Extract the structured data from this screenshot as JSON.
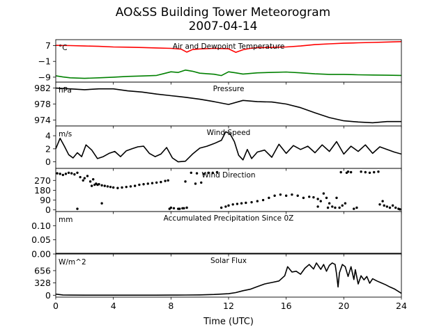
{
  "figure": {
    "title": "AO&SS Building Tower Meteorogram",
    "subtitle": "2007-04-14",
    "xlabel": "Time (UTC)"
  },
  "chart_data": {
    "type": "line",
    "title": "AO&SS Building Tower Meteorogram",
    "subtitle": "2007-04-14",
    "xlabel": "Time (UTC)",
    "xlim": [
      0,
      24
    ],
    "xticks": [
      0,
      4,
      8,
      12,
      16,
      20,
      24
    ],
    "xtick_labels": [
      "0",
      "4",
      "8",
      "12",
      "16",
      "20",
      "24"
    ],
    "panels": [
      {
        "name": "temperature",
        "title": "Air and Dewpoint Temperature",
        "unit": "°C",
        "ylim": [
          -11.5,
          10
        ],
        "yticks": [
          7,
          -1,
          -9
        ],
        "ytick_labels": [
          "7",
          "−1",
          "−9"
        ],
        "series": [
          {
            "color": "#ff0000",
            "style": "line",
            "x": [
              0,
              1,
              2,
              3,
              4,
              5,
              6,
              7,
              8,
              8.7,
              9.1,
              9.5,
              10,
              11,
              12,
              12.5,
              13,
              13.5,
              14,
              15,
              16,
              17,
              18,
              19,
              20,
              21,
              22,
              23,
              24
            ],
            "y": [
              7.1,
              7.0,
              6.8,
              6.6,
              6.3,
              6.2,
              6.0,
              5.8,
              5.6,
              5.2,
              3.7,
              5.0,
              5.3,
              5.6,
              5.4,
              3.6,
              4.9,
              5.6,
              5.9,
              6.1,
              6.3,
              6.8,
              7.5,
              7.9,
              8.2,
              8.4,
              8.6,
              8.8,
              9.0
            ]
          },
          {
            "color": "#008000",
            "style": "line",
            "x": [
              0,
              0.5,
              1,
              2,
              3,
              4,
              5,
              6,
              7,
              7.5,
              8,
              8.5,
              9,
              9.5,
              10,
              11,
              11.5,
              12,
              12.5,
              13,
              14,
              15,
              16,
              17,
              18,
              19,
              20,
              21,
              22,
              23,
              24
            ],
            "y": [
              -8.3,
              -8.9,
              -9.3,
              -9.6,
              -9.3,
              -9.0,
              -8.6,
              -8.4,
              -8.1,
              -7.2,
              -6.3,
              -6.6,
              -5.4,
              -6.0,
              -7.0,
              -7.5,
              -8.2,
              -6.3,
              -6.8,
              -7.4,
              -6.8,
              -6.6,
              -6.4,
              -6.8,
              -7.3,
              -7.6,
              -7.6,
              -7.8,
              -7.9,
              -8.0,
              -8.1
            ]
          }
        ]
      },
      {
        "name": "pressure",
        "title": "Pressure",
        "unit": "hPa",
        "ylim": [
          972.5,
          983.5
        ],
        "yticks": [
          982,
          978,
          974
        ],
        "ytick_labels": [
          "982",
          "978",
          "974"
        ],
        "series": [
          {
            "color": "#000000",
            "style": "line",
            "x": [
              0,
              1,
              2,
              3,
              4,
              5,
              6,
              7,
              8,
              9,
              10,
              11,
              12,
              13,
              14,
              15,
              16,
              17,
              18,
              19,
              20,
              21,
              22,
              23,
              24
            ],
            "y": [
              982.0,
              981.8,
              981.6,
              981.8,
              981.8,
              981.3,
              981.0,
              980.5,
              980.1,
              979.7,
              979.2,
              978.6,
              977.9,
              978.9,
              978.6,
              978.5,
              978.0,
              977.1,
              975.8,
              974.6,
              973.8,
              973.5,
              973.3,
              973.6,
              973.6
            ]
          }
        ]
      },
      {
        "name": "wind-speed",
        "title": "Wind Speed",
        "unit": "m/s",
        "ylim": [
          -1,
          5.5
        ],
        "yticks": [
          4,
          2,
          0
        ],
        "ytick_labels": [
          "4",
          "2",
          "0"
        ],
        "series": [
          {
            "color": "#000000",
            "style": "line",
            "x": [
              0,
              0.3,
              0.6,
              0.9,
              1.2,
              1.5,
              1.8,
              2.1,
              2.5,
              2.9,
              3.3,
              3.7,
              4.1,
              4.5,
              4.9,
              5.3,
              5.7,
              6.1,
              6.5,
              6.9,
              7.3,
              7.7,
              8.1,
              8.5,
              9,
              9.5,
              10,
              10.5,
              11,
              11.5,
              11.8,
              12.1,
              12.4,
              12.7,
              13,
              13.3,
              13.6,
              14,
              14.5,
              15,
              15.5,
              16,
              16.5,
              17,
              17.5,
              18,
              18.5,
              19,
              19.5,
              20,
              20.5,
              21,
              21.5,
              22,
              22.5,
              23,
              23.5,
              24
            ],
            "y": [
              2.0,
              3.6,
              2.4,
              1.1,
              0.6,
              1.4,
              0.8,
              2.6,
              1.8,
              0.5,
              0.8,
              1.3,
              1.6,
              0.8,
              1.7,
              2.0,
              2.3,
              2.4,
              1.3,
              0.8,
              1.2,
              2.2,
              0.6,
              0.0,
              0.1,
              1.2,
              2.1,
              2.4,
              2.8,
              3.3,
              4.6,
              4.3,
              3.1,
              1.0,
              0.3,
              1.9,
              0.5,
              1.5,
              1.8,
              0.7,
              2.7,
              1.3,
              2.5,
              1.9,
              2.4,
              1.4,
              2.6,
              1.6,
              3.1,
              1.2,
              2.4,
              1.6,
              2.6,
              1.3,
              2.3,
              1.9,
              1.5,
              1.2
            ]
          }
        ]
      },
      {
        "name": "wind-direction",
        "title": "Wind Direction",
        "unit": "",
        "ylim": [
          -15,
          380
        ],
        "yticks": [
          270,
          180,
          90,
          0
        ],
        "ytick_labels": [
          "270",
          "180",
          "90",
          "0"
        ],
        "series": [
          {
            "color": "#000000",
            "style": "scatter",
            "x": [
              0.1,
              0.3,
              0.5,
              0.7,
              0.9,
              1.1,
              1.3,
              1.5,
              1.7,
              1.9,
              2.0,
              2.2,
              2.4,
              2.5,
              2.6,
              2.7,
              2.8,
              2.9,
              3.0,
              3.2,
              3.4,
              3.6,
              3.8,
              4.0,
              4.3,
              4.6,
              4.9,
              5.2,
              5.5,
              5.8,
              6.1,
              6.4,
              6.7,
              7.0,
              7.3,
              7.6,
              7.8,
              8.0,
              7.9,
              8.2,
              8.5,
              8.8,
              9.1,
              8.6,
              8.9,
              9.0,
              9.4,
              9.8,
              10.3,
              10.6,
              10.9,
              11.2,
              11.5,
              11.8,
              12.0,
              12.3,
              12.6,
              12.9,
              13.2,
              13.6,
              14.0,
              14.4,
              14.8,
              15.2,
              15.6,
              16.0,
              16.4,
              16.8,
              17.2,
              17.6,
              17.9,
              18.2,
              18.4,
              18.6,
              18.8,
              19.0,
              19.2,
              19.4,
              19.5,
              19.7,
              19.9,
              20.1,
              20.3,
              20.5,
              20.2,
              20.7,
              20.9,
              21.2,
              21.5,
              21.8,
              22.1,
              22.4,
              22.7,
              22.5,
              22.8,
              23.0,
              23.2,
              23.4,
              23.6,
              23.8,
              23.9,
              1.5,
              3.2,
              9.7,
              10.1,
              19.8,
              18.9,
              18.2
            ],
            "y": [
              335,
              330,
              320,
              330,
              340,
              335,
              325,
              340,
              300,
              270,
              290,
              310,
              260,
              220,
              280,
              230,
              240,
              230,
              235,
              225,
              220,
              215,
              210,
              205,
              200,
              205,
              210,
              215,
              220,
              230,
              235,
              240,
              245,
              250,
              255,
              265,
              270,
              20,
              10,
              15,
              10,
              15,
              20,
              10,
              15,
              260,
              340,
              335,
              330,
              340,
              340,
              345,
              20,
              30,
              40,
              50,
              55,
              60,
              65,
              70,
              80,
              90,
              110,
              130,
              140,
              130,
              140,
              130,
              110,
              120,
              115,
              100,
              80,
              150,
              110,
              60,
              30,
              20,
              110,
              20,
              40,
              60,
              350,
              345,
              340,
              10,
              20,
              350,
              345,
              340,
              345,
              350,
              80,
              50,
              40,
              30,
              20,
              40,
              20,
              10,
              5,
              10,
              60,
              240,
              250,
              345,
              20,
              30
            ]
          }
        ]
      },
      {
        "name": "precipitation",
        "title": "Accumulated Precipitation Since 0Z",
        "unit": "mm",
        "ylim": [
          0,
          0.15
        ],
        "yticks": [
          0.1,
          0.05,
          0.0
        ],
        "ytick_labels": [
          "0.10",
          "0.05",
          "0.00"
        ],
        "series": [
          {
            "color": "#000000",
            "style": "line",
            "x": [
              0,
              24
            ],
            "y": [
              0,
              0
            ]
          }
        ]
      },
      {
        "name": "solar-flux",
        "title": "Solar Flux",
        "unit": "W/m^2",
        "ylim": [
          -50,
          1100
        ],
        "yticks": [
          656,
          328,
          0
        ],
        "ytick_labels": [
          "656",
          "328",
          "0"
        ],
        "series": [
          {
            "color": "#000000",
            "style": "line",
            "x": [
              0,
              0.5,
              1,
              2,
              3,
              4,
              5,
              6,
              7,
              8,
              9,
              10,
              11,
              12,
              12.5,
              13,
              13.5,
              14,
              14.5,
              15,
              15.5,
              15.9,
              16.1,
              16.4,
              16.7,
              17,
              17.3,
              17.6,
              17.9,
              18.1,
              18.4,
              18.6,
              18.8,
              19.0,
              19.2,
              19.4,
              19.5,
              19.6,
              19.7,
              19.9,
              20.1,
              20.3,
              20.5,
              20.7,
              20.8,
              21.0,
              21.2,
              21.4,
              21.6,
              21.8,
              22.0,
              22.3,
              22.6,
              22.9,
              23.2,
              23.5,
              23.8,
              24
            ],
            "y": [
              30,
              8,
              3,
              2,
              2,
              2,
              2,
              2,
              2,
              3,
              5,
              10,
              20,
              40,
              70,
              120,
              160,
              230,
              300,
              340,
              380,
              520,
              760,
              620,
              640,
              560,
              720,
              820,
              700,
              860,
              690,
              820,
              640,
              800,
              860,
              820,
              560,
              220,
              600,
              820,
              760,
              500,
              760,
              420,
              680,
              300,
              520,
              410,
              500,
              320,
              440,
              380,
              330,
              280,
              220,
              170,
              100,
              50
            ]
          }
        ]
      }
    ]
  }
}
